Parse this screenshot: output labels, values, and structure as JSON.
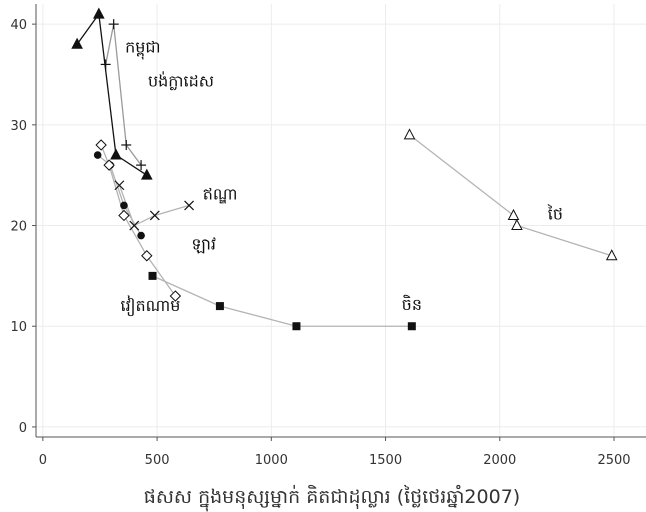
{
  "chart_data": {
    "type": "line",
    "xlabel": "ផសស ក្នុងមនុស្សម្នាក់ គិតជាដុល្លារ (ថ្លៃថេរឆ្នាំ2007)",
    "ylabel": "",
    "xlim": [
      -30,
      2640
    ],
    "ylim": [
      -1,
      42
    ],
    "x_ticks": [
      0,
      500,
      1000,
      1500,
      2000,
      2500
    ],
    "y_ticks": [
      0,
      10,
      20,
      30,
      40
    ],
    "grid": true,
    "legend": "none",
    "colors": {
      "line": "#b4b4b4",
      "line_dark": "#111111",
      "marker": "#111111",
      "grid": "#ececec",
      "axis": "#555555"
    },
    "series": [
      {
        "label": "កម្ពុជា",
        "marker": "triangle-filled",
        "line_color": "#111111",
        "points": [
          [
            150,
            38
          ],
          [
            245,
            41
          ],
          [
            320,
            27
          ],
          [
            455,
            25
          ]
        ]
      },
      {
        "label": "បង់ក្លាដេស",
        "marker": "plus",
        "line_color": "#9a9a9a",
        "points": [
          [
            275,
            36
          ],
          [
            310,
            40
          ],
          [
            365,
            28
          ],
          [
            430,
            26
          ]
        ]
      },
      {
        "label": "ឥណ្ឌា",
        "marker": "x",
        "line_color": "#b4b4b4",
        "points": [
          [
            335,
            24
          ],
          [
            400,
            20
          ],
          [
            490,
            21
          ],
          [
            640,
            22
          ]
        ]
      },
      {
        "label": "ឡាវ",
        "marker": "circle-filled",
        "line_color": "#b4b4b4",
        "points": [
          [
            240,
            27
          ],
          [
            295,
            26
          ],
          [
            355,
            22
          ],
          [
            430,
            19
          ]
        ]
      },
      {
        "label": "វៀតណាម",
        "marker": "diamond-open",
        "line_color": "#b4b4b4",
        "points": [
          [
            255,
            28
          ],
          [
            290,
            26
          ],
          [
            355,
            21
          ],
          [
            455,
            17
          ],
          [
            580,
            13
          ]
        ]
      },
      {
        "label": "ចិន",
        "marker": "square-filled",
        "line_color": "#b4b4b4",
        "points": [
          [
            480,
            15
          ],
          [
            775,
            12
          ],
          [
            1110,
            10
          ],
          [
            1615,
            10
          ]
        ]
      },
      {
        "label": "ថៃ",
        "marker": "triangle-open",
        "line_color": "#b4b4b4",
        "points": [
          [
            1605,
            29
          ],
          [
            2060,
            21
          ],
          [
            2075,
            20
          ],
          [
            2490,
            17
          ]
        ]
      }
    ]
  }
}
